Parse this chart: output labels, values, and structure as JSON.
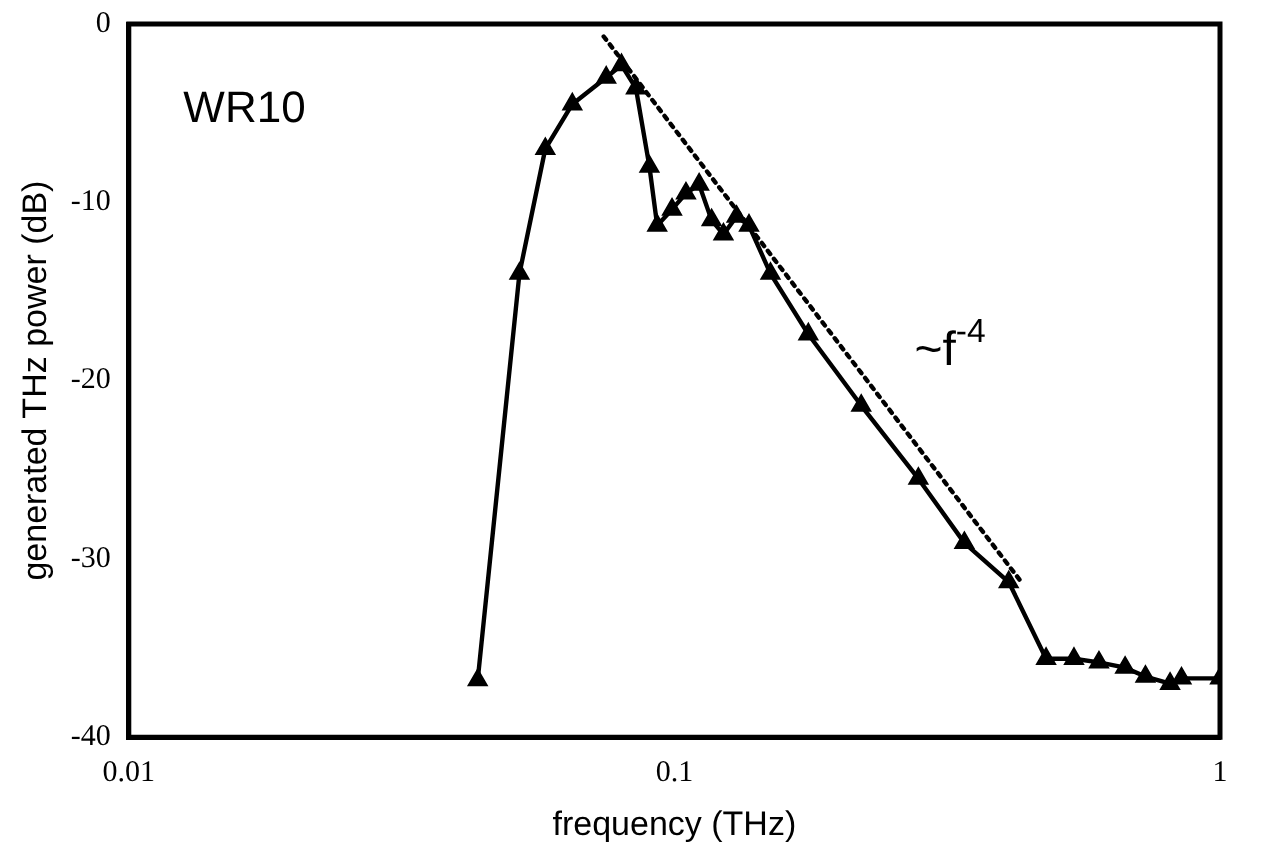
{
  "chart_data": {
    "type": "line",
    "xlabel": "frequency (THz)",
    "ylabel": "generated THz power (dB)",
    "log": "x",
    "xlim": [
      0.01,
      1
    ],
    "xticks": [
      0.01,
      0.1,
      1
    ],
    "ylim": [
      -40,
      0
    ],
    "yticks": [
      -40,
      -30,
      -20,
      -10,
      0
    ],
    "grid": false,
    "legend": false,
    "annotations": [
      "WR10",
      "~f$^{-4}$"
    ],
    "series": [
      {
        "color": "#000000",
        "marker": "triangle",
        "line_style": "solid",
        "x": [
          0.0436,
          0.052,
          0.058,
          0.065,
          0.075,
          0.08,
          0.085,
          0.09,
          0.093,
          0.099,
          0.105,
          0.111,
          0.117,
          0.123,
          0.13,
          0.137,
          0.15,
          0.176,
          0.22,
          0.28,
          0.34,
          0.41,
          0.48,
          0.54,
          0.6,
          0.67,
          0.73,
          0.81,
          0.85,
          1.0
        ],
        "values": [
          -36.8,
          -14,
          -7,
          -4.5,
          -3,
          -2.3,
          -3.6,
          -8,
          -11.3,
          -10.4,
          -9.5,
          -9,
          -11,
          -11.8,
          -10.8,
          -11.3,
          -14,
          -17.4,
          -21.4,
          -25.5,
          -29.1,
          -31.3,
          -35.6,
          -35.6,
          -35.8,
          -36.1,
          -36.6,
          -37,
          -36.7,
          -36.7
        ]
      },
      {
        "type": "line",
        "color": "#000000",
        "marker": "none",
        "line_style": "dotted",
        "x": [
          0.0742,
          0.43
        ],
        "values": [
          -0.7,
          -31.2
        ]
      }
    ]
  }
}
